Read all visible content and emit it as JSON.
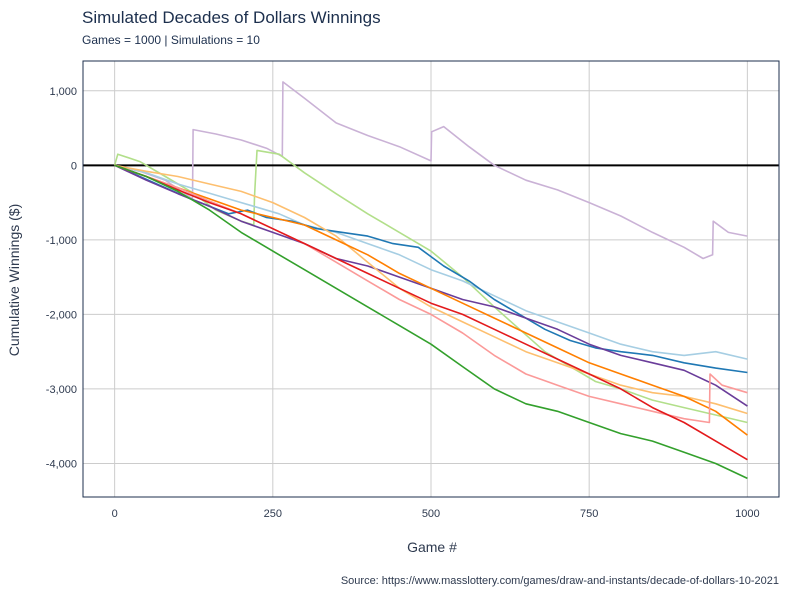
{
  "chart_data": {
    "type": "line",
    "title": "Simulated Decades of Dollars Winnings",
    "subtitle": "Games = 1000 | Simulations = 10",
    "xlabel": "Game #",
    "ylabel": "Cumulative Winnings ($)",
    "caption": "Source: https://www.masslottery.com/games/draw-and-instants/decade-of-dollars-10-2021",
    "xlim": [
      -50,
      1050
    ],
    "ylim": [
      -4450,
      1400
    ],
    "x_ticks": [
      0,
      250,
      500,
      750,
      1000
    ],
    "x_tick_labels": [
      "0",
      "250",
      "500",
      "750",
      "1000"
    ],
    "y_ticks": [
      1000,
      0,
      -1000,
      -2000,
      -3000,
      -4000
    ],
    "y_tick_labels": [
      "1,000",
      "0",
      "-1,000",
      "-2,000",
      "-3,000",
      "-4,000"
    ],
    "grid": true,
    "reference_line": 0,
    "series": [
      {
        "color": "#cab2d6",
        "points": [
          [
            0,
            0
          ],
          [
            40,
            -80
          ],
          [
            80,
            -200
          ],
          [
            123,
            -450
          ],
          [
            124,
            480
          ],
          [
            160,
            420
          ],
          [
            200,
            340
          ],
          [
            240,
            230
          ],
          [
            265,
            120
          ],
          [
            266,
            1120
          ],
          [
            300,
            900
          ],
          [
            350,
            570
          ],
          [
            400,
            400
          ],
          [
            450,
            250
          ],
          [
            500,
            60
          ],
          [
            501,
            450
          ],
          [
            520,
            520
          ],
          [
            560,
            250
          ],
          [
            600,
            0
          ],
          [
            650,
            -200
          ],
          [
            700,
            -330
          ],
          [
            750,
            -500
          ],
          [
            800,
            -680
          ],
          [
            850,
            -900
          ],
          [
            900,
            -1100
          ],
          [
            930,
            -1250
          ],
          [
            945,
            -1200
          ],
          [
            946,
            -750
          ],
          [
            970,
            -900
          ],
          [
            1000,
            -950
          ]
        ]
      },
      {
        "color": "#b2df8a",
        "points": [
          [
            0,
            0
          ],
          [
            5,
            150
          ],
          [
            40,
            50
          ],
          [
            80,
            -150
          ],
          [
            120,
            -350
          ],
          [
            160,
            -600
          ],
          [
            200,
            -750
          ],
          [
            220,
            -800
          ],
          [
            221,
            -420
          ],
          [
            225,
            200
          ],
          [
            260,
            150
          ],
          [
            300,
            -100
          ],
          [
            350,
            -380
          ],
          [
            400,
            -650
          ],
          [
            450,
            -900
          ],
          [
            500,
            -1150
          ],
          [
            550,
            -1500
          ],
          [
            600,
            -1900
          ],
          [
            640,
            -2200
          ],
          [
            680,
            -2500
          ],
          [
            720,
            -2700
          ],
          [
            760,
            -2900
          ],
          [
            800,
            -3000
          ],
          [
            850,
            -3150
          ],
          [
            900,
            -3250
          ],
          [
            950,
            -3350
          ],
          [
            1000,
            -3450
          ]
        ]
      },
      {
        "color": "#a6cee3",
        "points": [
          [
            0,
            0
          ],
          [
            50,
            -100
          ],
          [
            100,
            -250
          ],
          [
            140,
            -350
          ],
          [
            180,
            -450
          ],
          [
            220,
            -550
          ],
          [
            260,
            -650
          ],
          [
            300,
            -800
          ],
          [
            350,
            -900
          ],
          [
            400,
            -1050
          ],
          [
            450,
            -1200
          ],
          [
            500,
            -1400
          ],
          [
            550,
            -1550
          ],
          [
            600,
            -1750
          ],
          [
            650,
            -1950
          ],
          [
            700,
            -2100
          ],
          [
            750,
            -2250
          ],
          [
            800,
            -2400
          ],
          [
            850,
            -2500
          ],
          [
            900,
            -2550
          ],
          [
            950,
            -2500
          ],
          [
            1000,
            -2600
          ]
        ]
      },
      {
        "color": "#1f78b4",
        "points": [
          [
            0,
            0
          ],
          [
            40,
            -150
          ],
          [
            80,
            -300
          ],
          [
            120,
            -450
          ],
          [
            150,
            -550
          ],
          [
            180,
            -650
          ],
          [
            210,
            -600
          ],
          [
            240,
            -700
          ],
          [
            280,
            -750
          ],
          [
            320,
            -850
          ],
          [
            360,
            -900
          ],
          [
            400,
            -950
          ],
          [
            440,
            -1050
          ],
          [
            480,
            -1100
          ],
          [
            520,
            -1350
          ],
          [
            560,
            -1550
          ],
          [
            600,
            -1800
          ],
          [
            640,
            -2000
          ],
          [
            680,
            -2200
          ],
          [
            720,
            -2350
          ],
          [
            760,
            -2450
          ],
          [
            800,
            -2500
          ],
          [
            850,
            -2550
          ],
          [
            900,
            -2650
          ],
          [
            950,
            -2720
          ],
          [
            1000,
            -2780
          ]
        ]
      },
      {
        "color": "#6a3d9a",
        "points": [
          [
            0,
            0
          ],
          [
            50,
            -200
          ],
          [
            100,
            -380
          ],
          [
            150,
            -550
          ],
          [
            200,
            -750
          ],
          [
            250,
            -900
          ],
          [
            300,
            -1050
          ],
          [
            350,
            -1250
          ],
          [
            400,
            -1350
          ],
          [
            450,
            -1500
          ],
          [
            500,
            -1650
          ],
          [
            550,
            -1800
          ],
          [
            600,
            -1900
          ],
          [
            650,
            -2050
          ],
          [
            700,
            -2200
          ],
          [
            750,
            -2400
          ],
          [
            800,
            -2550
          ],
          [
            850,
            -2650
          ],
          [
            900,
            -2750
          ],
          [
            950,
            -2950
          ],
          [
            1000,
            -3230
          ]
        ]
      },
      {
        "color": "#fdbf6f",
        "points": [
          [
            0,
            0
          ],
          [
            50,
            -80
          ],
          [
            100,
            -150
          ],
          [
            150,
            -250
          ],
          [
            200,
            -350
          ],
          [
            250,
            -500
          ],
          [
            300,
            -700
          ],
          [
            350,
            -950
          ],
          [
            400,
            -1300
          ],
          [
            450,
            -1650
          ],
          [
            500,
            -1900
          ],
          [
            550,
            -2100
          ],
          [
            600,
            -2300
          ],
          [
            650,
            -2500
          ],
          [
            700,
            -2650
          ],
          [
            750,
            -2800
          ],
          [
            800,
            -2950
          ],
          [
            850,
            -3050
          ],
          [
            900,
            -3100
          ],
          [
            950,
            -3200
          ],
          [
            1000,
            -3330
          ]
        ]
      },
      {
        "color": "#ff7f00",
        "points": [
          [
            0,
            0
          ],
          [
            50,
            -150
          ],
          [
            100,
            -300
          ],
          [
            150,
            -450
          ],
          [
            200,
            -600
          ],
          [
            250,
            -700
          ],
          [
            300,
            -800
          ],
          [
            350,
            -1000
          ],
          [
            400,
            -1200
          ],
          [
            450,
            -1450
          ],
          [
            500,
            -1650
          ],
          [
            550,
            -1850
          ],
          [
            600,
            -2050
          ],
          [
            650,
            -2250
          ],
          [
            700,
            -2450
          ],
          [
            750,
            -2650
          ],
          [
            800,
            -2800
          ],
          [
            850,
            -2950
          ],
          [
            900,
            -3100
          ],
          [
            950,
            -3300
          ],
          [
            1000,
            -3620
          ]
        ]
      },
      {
        "color": "#fb9a99",
        "points": [
          [
            0,
            0
          ],
          [
            50,
            -150
          ],
          [
            100,
            -300
          ],
          [
            150,
            -480
          ],
          [
            200,
            -650
          ],
          [
            250,
            -850
          ],
          [
            300,
            -1050
          ],
          [
            350,
            -1300
          ],
          [
            400,
            -1550
          ],
          [
            450,
            -1800
          ],
          [
            500,
            -2000
          ],
          [
            550,
            -2250
          ],
          [
            600,
            -2550
          ],
          [
            650,
            -2800
          ],
          [
            700,
            -2950
          ],
          [
            750,
            -3100
          ],
          [
            800,
            -3200
          ],
          [
            850,
            -3300
          ],
          [
            900,
            -3400
          ],
          [
            940,
            -3450
          ],
          [
            941,
            -2800
          ],
          [
            960,
            -2950
          ],
          [
            1000,
            -3050
          ]
        ]
      },
      {
        "color": "#e31a1c",
        "points": [
          [
            0,
            0
          ],
          [
            50,
            -150
          ],
          [
            100,
            -330
          ],
          [
            150,
            -500
          ],
          [
            200,
            -650
          ],
          [
            250,
            -850
          ],
          [
            300,
            -1050
          ],
          [
            350,
            -1250
          ],
          [
            400,
            -1450
          ],
          [
            450,
            -1650
          ],
          [
            500,
            -1850
          ],
          [
            550,
            -2000
          ],
          [
            600,
            -2200
          ],
          [
            650,
            -2400
          ],
          [
            700,
            -2600
          ],
          [
            750,
            -2800
          ],
          [
            800,
            -3000
          ],
          [
            850,
            -3250
          ],
          [
            900,
            -3450
          ],
          [
            950,
            -3700
          ],
          [
            1000,
            -3950
          ]
        ]
      },
      {
        "color": "#33a02c",
        "points": [
          [
            0,
            0
          ],
          [
            50,
            -150
          ],
          [
            100,
            -350
          ],
          [
            150,
            -600
          ],
          [
            200,
            -900
          ],
          [
            250,
            -1150
          ],
          [
            300,
            -1400
          ],
          [
            350,
            -1650
          ],
          [
            400,
            -1900
          ],
          [
            450,
            -2150
          ],
          [
            500,
            -2400
          ],
          [
            550,
            -2700
          ],
          [
            600,
            -3000
          ],
          [
            650,
            -3200
          ],
          [
            700,
            -3300
          ],
          [
            750,
            -3450
          ],
          [
            800,
            -3600
          ],
          [
            850,
            -3700
          ],
          [
            900,
            -3850
          ],
          [
            950,
            -4000
          ],
          [
            1000,
            -4200
          ]
        ]
      }
    ]
  }
}
